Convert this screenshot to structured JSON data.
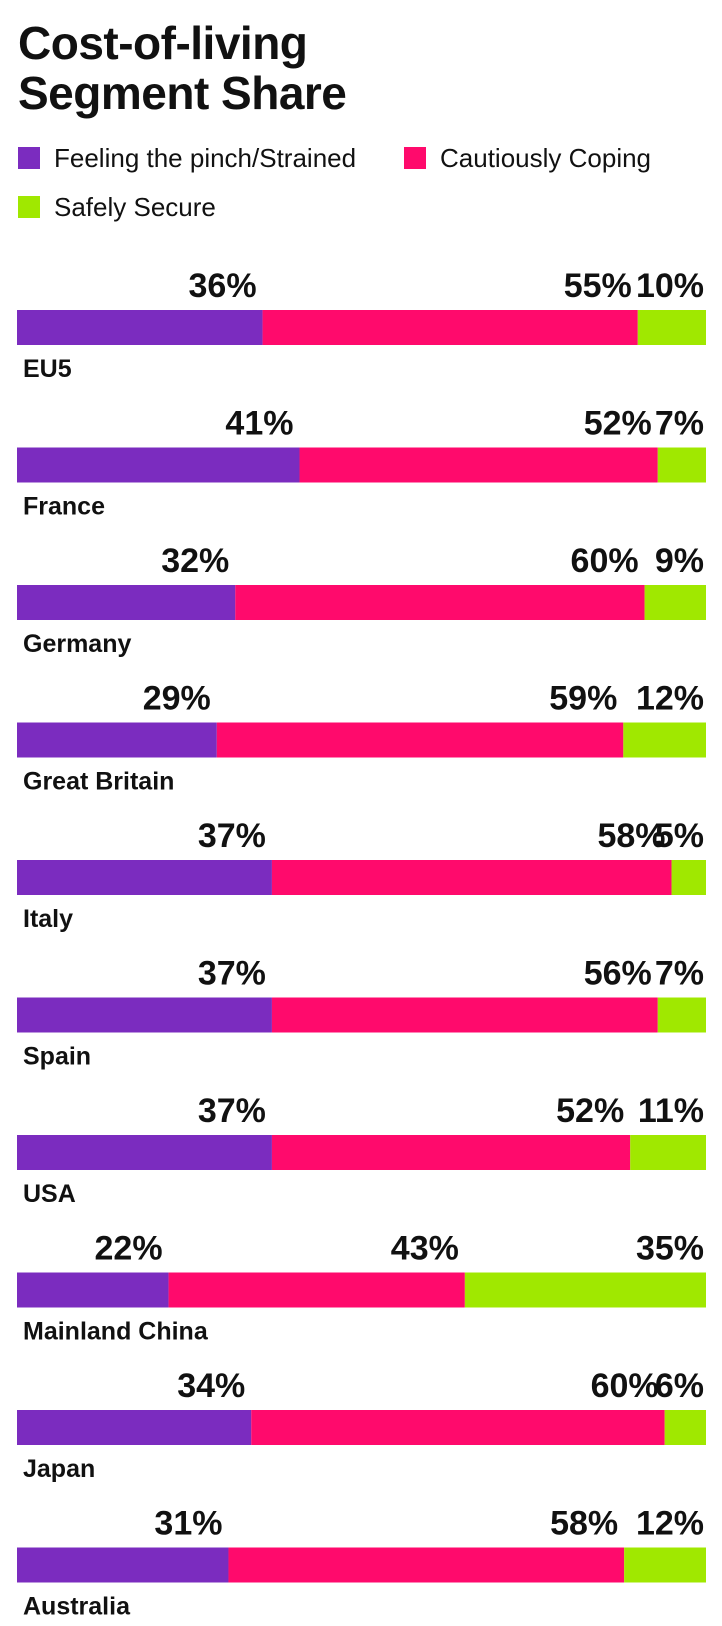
{
  "title_line1": "Cost-of-living",
  "title_line2": "Segment Share",
  "legend": [
    {
      "label": "Feeling the pinch/Strained",
      "color": "#7B2CBF"
    },
    {
      "label": "Cautiously Coping",
      "color": "#FF0A6C"
    },
    {
      "label": "Safely Secure",
      "color": "#A0E800"
    }
  ],
  "chart_data": {
    "type": "bar",
    "orientation": "horizontal",
    "stacked": true,
    "title": "Cost-of-living Segment Share",
    "categories": [
      "EU5",
      "France",
      "Germany",
      "Great Britain",
      "Italy",
      "Spain",
      "USA",
      "Mainland China",
      "Japan",
      "Australia"
    ],
    "series": [
      {
        "name": "Feeling the pinch/Strained",
        "color": "#7B2CBF",
        "values": [
          36,
          41,
          32,
          29,
          37,
          37,
          37,
          22,
          34,
          31
        ]
      },
      {
        "name": "Cautiously Coping",
        "color": "#FF0A6C",
        "values": [
          55,
          52,
          60,
          59,
          58,
          56,
          52,
          43,
          60,
          58
        ]
      },
      {
        "name": "Safely Secure",
        "color": "#A0E800",
        "values": [
          10,
          7,
          9,
          12,
          5,
          7,
          11,
          35,
          6,
          12
        ]
      }
    ],
    "value_suffix": "%",
    "legend_position": "top",
    "grid": false
  }
}
